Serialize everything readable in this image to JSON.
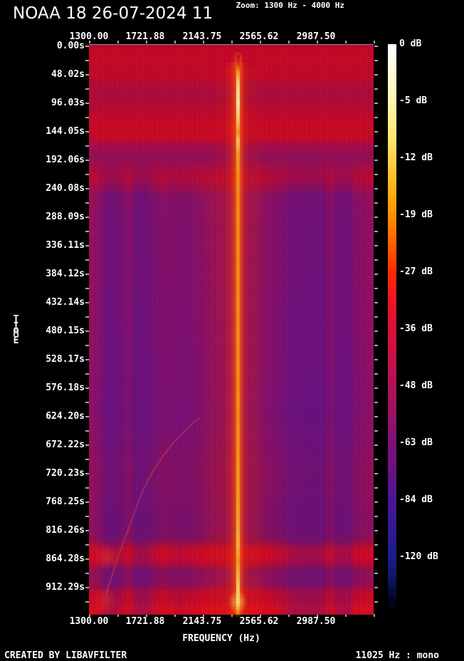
{
  "header": {
    "title": "NOAA 18 26-07-2024 11",
    "zoom_label": "Zoom: 1300 Hz - 4000 Hz"
  },
  "axes": {
    "time": {
      "label": "TIME",
      "tick_labels": [
        "0.00s",
        "48.02s",
        "96.03s",
        "144.05s",
        "192.06s",
        "240.08s",
        "288.09s",
        "336.11s",
        "384.12s",
        "432.14s",
        "480.15s",
        "528.17s",
        "576.18s",
        "624.20s",
        "672.22s",
        "720.23s",
        "768.25s",
        "816.26s",
        "864.28s",
        "912.29s"
      ]
    },
    "frequency": {
      "label": "FREQUENCY (Hz)",
      "tick_labels": [
        "1300.00",
        "1721.88",
        "2143.75",
        "2565.62",
        "2987.50"
      ]
    }
  },
  "colorbar": {
    "tick_labels": [
      "0 dB",
      "-5 dB",
      "-12 dB",
      "-19 dB",
      "-27 dB",
      "-36 dB",
      "-48 dB",
      "-63 dB",
      "-84 dB",
      "-120 dB"
    ]
  },
  "footer": {
    "left": "CREATED BY LIBAVFILTER",
    "right": "11025 Hz : mono"
  },
  "chart_data": {
    "type": "heatmap",
    "subtype": "audio-spectrogram",
    "title": "NOAA 18 26-07-2024 11",
    "xlabel": "FREQUENCY (Hz)",
    "ylabel": "TIME",
    "x_range_hz": [
      1300,
      4000
    ],
    "x_tick_values_hz": [
      1300.0,
      1721.88,
      2143.75,
      2565.62,
      2987.5
    ],
    "y_tick_values_s": [
      0.0,
      48.02,
      96.03,
      144.05,
      192.06,
      240.08,
      288.09,
      336.11,
      384.12,
      432.14,
      480.15,
      528.17,
      576.18,
      624.2,
      672.22,
      720.23,
      768.25,
      816.26,
      864.28,
      912.29
    ],
    "y_range_s": [
      0,
      960.4
    ],
    "colorbar_db_ticks": [
      0,
      -5,
      -12,
      -19,
      -27,
      -36,
      -48,
      -63,
      -84,
      -120
    ],
    "colorbar_scale_hex": [
      "#ffffff",
      "#fff6b0",
      "#ffd24f",
      "#ff9000",
      "#fb2c06",
      "#d81136",
      "#ad1358",
      "#7d1175",
      "#4b1692",
      "#1b1c8a",
      "#000000"
    ],
    "sample_rate_label": "11025 Hz",
    "channel_mode": "mono",
    "features": [
      "bright narrowband carrier (~2400 Hz APT subcarrier) as vertical orange-yellow line spanning full duration at x-center-left",
      "strong broadband signal (bright red) from 0 s to about 200 s",
      "darker purple background with vertical noise columns through the middle of the pass (~260-760 s)",
      "bright broadband horizontal band around 768-792 s",
      "bright broadband band from ~826 s to end of recording",
      "faint curved doppler-like trace in the lower-left quadrant",
      "small strong bursts near the left edge around 770 s and 830 s"
    ]
  }
}
